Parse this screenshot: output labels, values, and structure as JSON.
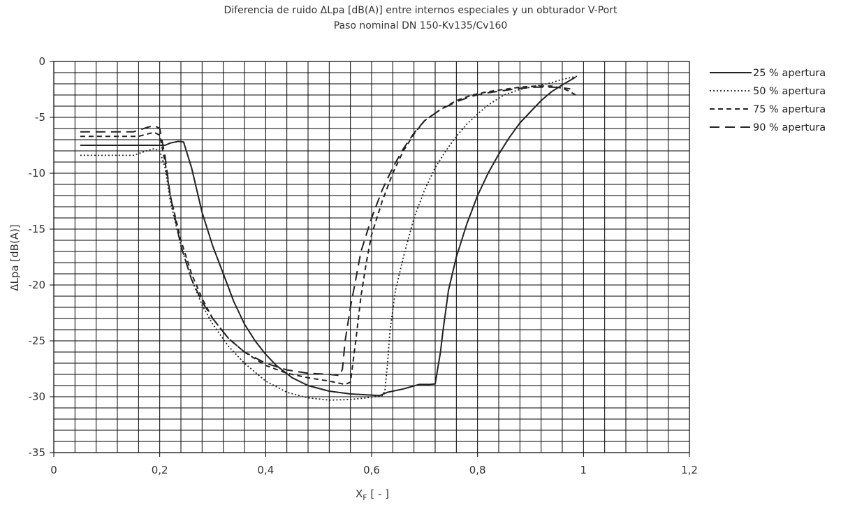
{
  "chart_data": {
    "type": "line",
    "title": "Diferencia de ruido ΔLpa [dB(A)] entre internos especiales y un obturador V-Port",
    "subtitle": "Paso nominal DN 150-Kv135/Cv160",
    "xlabel": "X",
    "xlabel_sub": "F",
    "xlabel_suffix": " [ - ]",
    "ylabel": "ΔLpa [dB(A)]",
    "xlim": [
      0,
      1.2
    ],
    "ylim": [
      -35,
      0
    ],
    "x_ticks": [
      0,
      0.2,
      0.4,
      0.6,
      0.8,
      1,
      1.2
    ],
    "x_tick_labels": [
      "0",
      "0,2",
      "0,4",
      "0,6",
      "0,8",
      "1",
      "1,2"
    ],
    "y_ticks": [
      0,
      -5,
      -10,
      -15,
      -20,
      -25,
      -30,
      -35
    ],
    "y_tick_labels": [
      "0",
      "-5",
      "-10",
      "-15",
      "-20",
      "-25",
      "-30",
      "-35"
    ],
    "grid": true,
    "legend_position": "right",
    "series": [
      {
        "name": "25 % apertura",
        "style": "solid",
        "color": "#222222",
        "points": [
          [
            0.05,
            -7.5
          ],
          [
            0.19,
            -7.5
          ],
          [
            0.21,
            -7.5
          ],
          [
            0.22,
            -7.3
          ],
          [
            0.235,
            -7.15
          ],
          [
            0.245,
            -7.2
          ],
          [
            0.26,
            -9.5
          ],
          [
            0.28,
            -13.5
          ],
          [
            0.3,
            -16.5
          ],
          [
            0.32,
            -19.0
          ],
          [
            0.34,
            -21.5
          ],
          [
            0.36,
            -23.5
          ],
          [
            0.38,
            -25.0
          ],
          [
            0.4,
            -26.2
          ],
          [
            0.42,
            -27.2
          ],
          [
            0.45,
            -28.3
          ],
          [
            0.48,
            -29.0
          ],
          [
            0.52,
            -29.5
          ],
          [
            0.56,
            -29.75
          ],
          [
            0.6,
            -29.85
          ],
          [
            0.615,
            -29.9
          ],
          [
            0.63,
            -29.6
          ],
          [
            0.66,
            -29.3
          ],
          [
            0.69,
            -28.9
          ],
          [
            0.71,
            -28.9
          ],
          [
            0.72,
            -28.85
          ],
          [
            0.73,
            -26.0
          ],
          [
            0.735,
            -24.0
          ],
          [
            0.745,
            -20.5
          ],
          [
            0.76,
            -17.5
          ],
          [
            0.78,
            -14.5
          ],
          [
            0.8,
            -12.0
          ],
          [
            0.82,
            -10.0
          ],
          [
            0.84,
            -8.3
          ],
          [
            0.86,
            -6.8
          ],
          [
            0.88,
            -5.5
          ],
          [
            0.9,
            -4.5
          ],
          [
            0.92,
            -3.5
          ],
          [
            0.94,
            -2.7
          ],
          [
            0.96,
            -2.1
          ],
          [
            0.985,
            -1.4
          ]
        ]
      },
      {
        "name": "50 % apertura",
        "style": "dotted",
        "color": "#222222",
        "points": [
          [
            0.05,
            -8.4
          ],
          [
            0.15,
            -8.4
          ],
          [
            0.175,
            -8.0
          ],
          [
            0.19,
            -7.8
          ],
          [
            0.2,
            -8.0
          ],
          [
            0.21,
            -9.5
          ],
          [
            0.22,
            -12.5
          ],
          [
            0.24,
            -16.5
          ],
          [
            0.26,
            -19.5
          ],
          [
            0.28,
            -21.8
          ],
          [
            0.3,
            -23.5
          ],
          [
            0.33,
            -25.5
          ],
          [
            0.36,
            -27.0
          ],
          [
            0.4,
            -28.6
          ],
          [
            0.44,
            -29.6
          ],
          [
            0.48,
            -30.1
          ],
          [
            0.52,
            -30.3
          ],
          [
            0.56,
            -30.25
          ],
          [
            0.59,
            -30.1
          ],
          [
            0.62,
            -29.9
          ],
          [
            0.625,
            -29.5
          ],
          [
            0.63,
            -27.0
          ],
          [
            0.635,
            -24.0
          ],
          [
            0.645,
            -20.5
          ],
          [
            0.66,
            -17.5
          ],
          [
            0.68,
            -14.0
          ],
          [
            0.7,
            -11.5
          ],
          [
            0.72,
            -9.5
          ],
          [
            0.74,
            -8.0
          ],
          [
            0.76,
            -6.7
          ],
          [
            0.78,
            -5.6
          ],
          [
            0.8,
            -4.7
          ],
          [
            0.82,
            -3.9
          ],
          [
            0.85,
            -3.0
          ],
          [
            0.88,
            -2.5
          ],
          [
            0.91,
            -2.2
          ],
          [
            0.94,
            -1.9
          ],
          [
            0.96,
            -1.6
          ],
          [
            0.98,
            -1.4
          ],
          [
            0.99,
            -1.3
          ]
        ]
      },
      {
        "name": "75 % apertura",
        "style": "dashed",
        "color": "#222222",
        "points": [
          [
            0.05,
            -6.7
          ],
          [
            0.16,
            -6.7
          ],
          [
            0.18,
            -6.45
          ],
          [
            0.19,
            -6.35
          ],
          [
            0.2,
            -6.6
          ],
          [
            0.21,
            -9.0
          ],
          [
            0.22,
            -12.0
          ],
          [
            0.24,
            -16.0
          ],
          [
            0.26,
            -19.0
          ],
          [
            0.28,
            -21.2
          ],
          [
            0.3,
            -23.0
          ],
          [
            0.33,
            -24.8
          ],
          [
            0.36,
            -26.0
          ],
          [
            0.4,
            -27.2
          ],
          [
            0.44,
            -27.9
          ],
          [
            0.48,
            -28.3
          ],
          [
            0.52,
            -28.6
          ],
          [
            0.55,
            -28.9
          ],
          [
            0.56,
            -28.7
          ],
          [
            0.57,
            -25.0
          ],
          [
            0.58,
            -21.0
          ],
          [
            0.59,
            -18.0
          ],
          [
            0.6,
            -15.5
          ],
          [
            0.62,
            -12.5
          ],
          [
            0.64,
            -10.0
          ],
          [
            0.66,
            -8.0
          ],
          [
            0.68,
            -6.5
          ],
          [
            0.7,
            -5.3
          ],
          [
            0.73,
            -4.3
          ],
          [
            0.76,
            -3.5
          ],
          [
            0.79,
            -3.0
          ],
          [
            0.82,
            -2.7
          ],
          [
            0.85,
            -2.5
          ],
          [
            0.88,
            -2.3
          ],
          [
            0.91,
            -2.2
          ],
          [
            0.94,
            -2.2
          ],
          [
            0.96,
            -2.4
          ],
          [
            0.975,
            -2.7
          ],
          [
            0.985,
            -3.0
          ]
        ]
      },
      {
        "name": "90 % apertura",
        "style": "longdash",
        "color": "#222222",
        "points": [
          [
            0.05,
            -6.3
          ],
          [
            0.15,
            -6.3
          ],
          [
            0.18,
            -5.85
          ],
          [
            0.19,
            -5.75
          ],
          [
            0.2,
            -6.0
          ],
          [
            0.21,
            -8.5
          ],
          [
            0.22,
            -12.0
          ],
          [
            0.24,
            -16.5
          ],
          [
            0.26,
            -19.5
          ],
          [
            0.28,
            -21.5
          ],
          [
            0.3,
            -23.0
          ],
          [
            0.33,
            -24.8
          ],
          [
            0.36,
            -26.0
          ],
          [
            0.4,
            -27.0
          ],
          [
            0.44,
            -27.6
          ],
          [
            0.48,
            -27.9
          ],
          [
            0.52,
            -28.0
          ],
          [
            0.54,
            -28.1
          ],
          [
            0.545,
            -27.5
          ],
          [
            0.55,
            -25.0
          ],
          [
            0.56,
            -22.0
          ],
          [
            0.57,
            -19.5
          ],
          [
            0.58,
            -17.0
          ],
          [
            0.6,
            -14.0
          ],
          [
            0.62,
            -11.5
          ],
          [
            0.64,
            -9.5
          ],
          [
            0.66,
            -7.8
          ],
          [
            0.68,
            -6.4
          ],
          [
            0.7,
            -5.3
          ],
          [
            0.73,
            -4.3
          ],
          [
            0.76,
            -3.6
          ],
          [
            0.79,
            -3.1
          ],
          [
            0.82,
            -2.8
          ],
          [
            0.85,
            -2.6
          ],
          [
            0.88,
            -2.4
          ],
          [
            0.91,
            -2.3
          ],
          [
            0.94,
            -2.3
          ],
          [
            0.96,
            -2.35
          ],
          [
            0.975,
            -2.45
          ]
        ]
      }
    ]
  }
}
